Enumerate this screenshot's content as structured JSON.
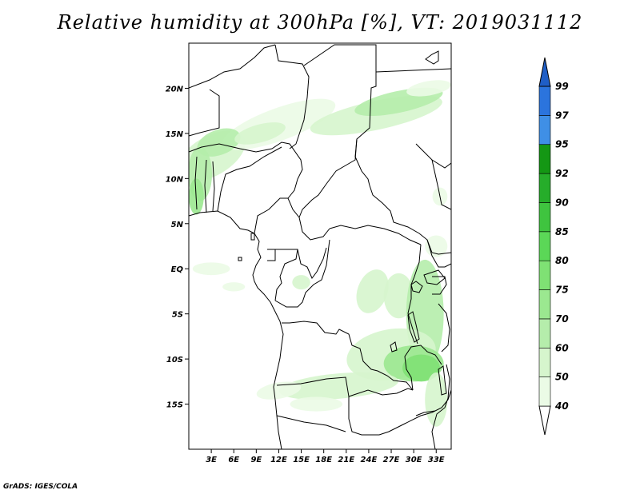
{
  "title": "Relative humidity at 300hPa [%], VT: 2019031112",
  "credit": "GrADS: IGES/COLA",
  "map": {
    "region": "Central Africa",
    "lon_range": [
      0,
      35
    ],
    "lat_range": [
      -20,
      25
    ],
    "lat_ticks": [
      {
        "value": 20,
        "label": "20N"
      },
      {
        "value": 15,
        "label": "15N"
      },
      {
        "value": 10,
        "label": "10N"
      },
      {
        "value": 5,
        "label": "5N"
      },
      {
        "value": 0,
        "label": "EQ"
      },
      {
        "value": -5,
        "label": "5S"
      },
      {
        "value": -10,
        "label": "10S"
      },
      {
        "value": -15,
        "label": "15S"
      }
    ],
    "lon_ticks": [
      {
        "value": 3,
        "label": "3E"
      },
      {
        "value": 6,
        "label": "6E"
      },
      {
        "value": 9,
        "label": "9E"
      },
      {
        "value": 12,
        "label": "12E"
      },
      {
        "value": 15,
        "label": "15E"
      },
      {
        "value": 18,
        "label": "18E"
      },
      {
        "value": 21,
        "label": "21E"
      },
      {
        "value": 24,
        "label": "24E"
      },
      {
        "value": 27,
        "label": "27E"
      },
      {
        "value": 30,
        "label": "30E"
      },
      {
        "value": 33,
        "label": "33E"
      }
    ]
  },
  "legend": {
    "bins": [
      {
        "from": 40,
        "to": 50,
        "color": "#ebfbe6"
      },
      {
        "from": 50,
        "to": 60,
        "color": "#d6f5cd"
      },
      {
        "from": 60,
        "to": 70,
        "color": "#b5edab"
      },
      {
        "from": 70,
        "to": 75,
        "color": "#9be890"
      },
      {
        "from": 75,
        "to": 80,
        "color": "#7fe174"
      },
      {
        "from": 80,
        "to": 85,
        "color": "#5bd757"
      },
      {
        "from": 85,
        "to": 90,
        "color": "#3fc43f"
      },
      {
        "from": 90,
        "to": 92,
        "color": "#26ad2a"
      },
      {
        "from": 92,
        "to": 95,
        "color": "#149714"
      },
      {
        "from": 95,
        "to": 97,
        "color": "#3f8fe6"
      },
      {
        "from": 97,
        "to": 99,
        "color": "#2b74dd"
      }
    ],
    "labels": [
      "40",
      "50",
      "60",
      "70",
      "75",
      "80",
      "85",
      "90",
      "92",
      "95",
      "97",
      "99"
    ],
    "below_color": "#ffffff",
    "above_color": "#1f5ec6"
  },
  "humidity_patches": [
    {
      "lon": 3.0,
      "lat": 12.5,
      "rlon": 5.0,
      "rlat": 2.2,
      "rot": -30,
      "value": 50
    },
    {
      "lon": 12.0,
      "lat": 16.0,
      "rlon": 8.0,
      "rlat": 1.8,
      "rot": -20,
      "value": 45
    },
    {
      "lon": 4.0,
      "lat": 14.0,
      "rlon": 3.0,
      "rlat": 1.4,
      "rot": -20,
      "value": 60
    },
    {
      "lon": 9.5,
      "lat": 15.0,
      "rlon": 3.5,
      "rlat": 1.0,
      "rot": -15,
      "value": 55
    },
    {
      "lon": 1.5,
      "lat": 10.5,
      "rlon": 1.6,
      "rlat": 3.0,
      "rot": 0,
      "value": 65
    },
    {
      "lon": 1.0,
      "lat": 8.0,
      "rlon": 1.0,
      "rlat": 2.0,
      "rot": 0,
      "value": 72
    },
    {
      "lon": 25.0,
      "lat": 17.0,
      "rlon": 9.0,
      "rlat": 1.6,
      "rot": -12,
      "value": 50
    },
    {
      "lon": 28.0,
      "lat": 18.5,
      "rlon": 6.0,
      "rlat": 1.2,
      "rot": -12,
      "value": 60
    },
    {
      "lon": 32.0,
      "lat": 20.0,
      "rlon": 3.0,
      "rlat": 0.8,
      "rot": -10,
      "value": 45
    },
    {
      "lon": 3.0,
      "lat": 0.0,
      "rlon": 2.5,
      "rlat": 0.7,
      "rot": 0,
      "value": 45
    },
    {
      "lon": 6.0,
      "lat": -2.0,
      "rlon": 1.5,
      "rlat": 0.5,
      "rot": 0,
      "value": 45
    },
    {
      "lon": 15.0,
      "lat": -1.5,
      "rlon": 1.2,
      "rlat": 0.8,
      "rot": 0,
      "value": 55
    },
    {
      "lon": 24.5,
      "lat": -2.5,
      "rlon": 2.0,
      "rlat": 2.5,
      "rot": 20,
      "value": 55
    },
    {
      "lon": 28.0,
      "lat": -3.0,
      "rlon": 2.0,
      "rlat": 2.5,
      "rot": 0,
      "value": 50
    },
    {
      "lon": 31.5,
      "lat": -5.0,
      "rlon": 2.5,
      "rlat": 6.0,
      "rot": 0,
      "value": 60
    },
    {
      "lon": 27.0,
      "lat": -9.5,
      "rlon": 6.0,
      "rlat": 2.8,
      "rot": -10,
      "value": 55
    },
    {
      "lon": 30.0,
      "lat": -10.5,
      "rlon": 4.0,
      "rlat": 2.0,
      "rot": 0,
      "value": 70
    },
    {
      "lon": 31.0,
      "lat": -11.0,
      "rlon": 2.5,
      "rlat": 1.5,
      "rot": 0,
      "value": 77
    },
    {
      "lon": 20.0,
      "lat": -13.0,
      "rlon": 8.0,
      "rlat": 1.4,
      "rot": -5,
      "value": 55
    },
    {
      "lon": 12.0,
      "lat": -13.5,
      "rlon": 3.0,
      "rlat": 0.9,
      "rot": -10,
      "value": 45
    },
    {
      "lon": 17.0,
      "lat": -15.0,
      "rlon": 3.5,
      "rlat": 0.8,
      "rot": 0,
      "value": 45
    },
    {
      "lon": 33.0,
      "lat": -14.5,
      "rlon": 1.5,
      "rlat": 3.0,
      "rot": 0,
      "value": 55
    },
    {
      "lon": 33.0,
      "lat": 2.5,
      "rlon": 1.5,
      "rlat": 1.2,
      "rot": 0,
      "value": 45
    },
    {
      "lon": 33.5,
      "lat": 8.0,
      "rlon": 1.0,
      "rlat": 1.0,
      "rot": 0,
      "value": 45
    }
  ]
}
